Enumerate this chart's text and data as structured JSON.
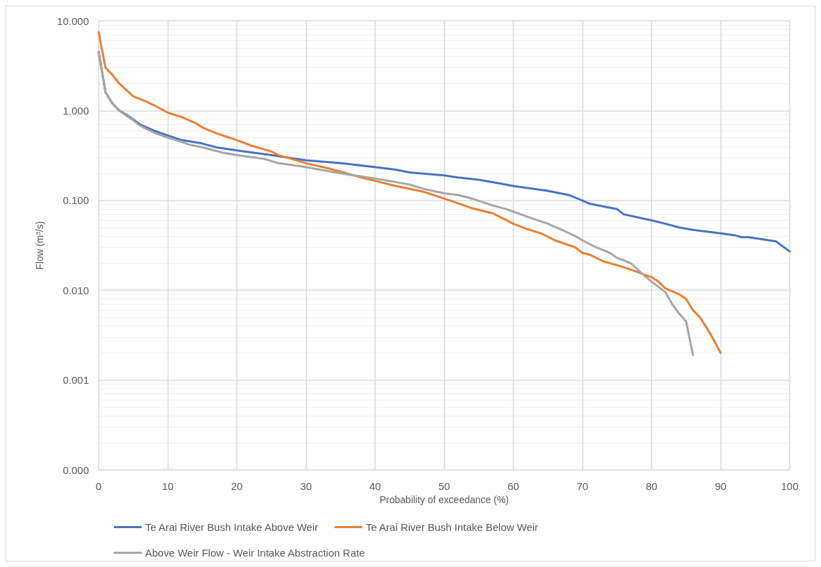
{
  "chart_data": {
    "type": "line",
    "xlabel": "Probability of exceedance (%)",
    "ylabel": "Flow (m³/s)",
    "log": "y",
    "grid": true,
    "legend": "bottom",
    "marker": "none",
    "line_style": "solid",
    "xlim": [
      0,
      100
    ],
    "xticks": [
      0,
      10,
      20,
      30,
      40,
      50,
      60,
      70,
      80,
      90,
      100
    ],
    "ylim": [
      0.0001,
      10
    ],
    "yticks": [
      {
        "value": 0.0001,
        "label": "0.000"
      },
      {
        "value": 0.001,
        "label": "0.001"
      },
      {
        "value": 0.01,
        "label": "0.010"
      },
      {
        "value": 0.1,
        "label": "0.100"
      },
      {
        "value": 1,
        "label": "1.000"
      },
      {
        "value": 10,
        "label": "10.000"
      }
    ],
    "series": [
      {
        "name": "Te Arai River Bush Intake Above Weir",
        "color": "#4472c4",
        "x": [
          0,
          1,
          2,
          3,
          4,
          5,
          6,
          8,
          10,
          12,
          15,
          17,
          20,
          25,
          30,
          35,
          40,
          43,
          45,
          50,
          52,
          55,
          58,
          60,
          65,
          68,
          70,
          71,
          75,
          76,
          80,
          82,
          84,
          86,
          90,
          92,
          93,
          94,
          98,
          100
        ],
        "values": [
          4.5,
          1.6,
          1.2,
          1.0,
          0.9,
          0.8,
          0.7,
          0.6,
          0.53,
          0.47,
          0.43,
          0.39,
          0.36,
          0.32,
          0.28,
          0.26,
          0.235,
          0.22,
          0.205,
          0.19,
          0.18,
          0.17,
          0.155,
          0.145,
          0.128,
          0.115,
          0.1,
          0.092,
          0.08,
          0.07,
          0.06,
          0.055,
          0.05,
          0.047,
          0.043,
          0.041,
          0.039,
          0.039,
          0.035,
          0.027
        ]
      },
      {
        "name": "Te Arai River Bush Intake Below Weir",
        "color": "#ed7d31",
        "x": [
          0,
          1,
          2,
          3,
          4,
          5,
          7,
          8,
          10,
          12,
          14,
          15,
          17,
          20,
          22,
          25,
          26,
          30,
          33,
          35,
          38,
          40,
          43,
          45,
          47,
          50,
          52,
          54,
          57,
          58,
          60,
          62,
          64,
          66,
          69,
          70,
          71,
          73,
          75,
          77,
          80,
          81,
          82,
          84,
          85,
          86,
          87,
          88,
          89,
          90
        ],
        "values": [
          7.5,
          3.0,
          2.5,
          2.0,
          1.7,
          1.45,
          1.25,
          1.15,
          0.95,
          0.85,
          0.73,
          0.65,
          0.56,
          0.47,
          0.41,
          0.35,
          0.32,
          0.26,
          0.23,
          0.21,
          0.18,
          0.165,
          0.145,
          0.135,
          0.125,
          0.105,
          0.093,
          0.082,
          0.072,
          0.066,
          0.055,
          0.048,
          0.043,
          0.036,
          0.03,
          0.026,
          0.025,
          0.021,
          0.019,
          0.017,
          0.014,
          0.0125,
          0.0105,
          0.009,
          0.008,
          0.006,
          0.005,
          0.0038,
          0.0028,
          0.002
        ]
      },
      {
        "name": "Above Weir Flow - Weir Intake Abstraction Rate",
        "color": "#a5a5a5",
        "x": [
          0,
          1,
          2,
          3,
          4,
          5,
          6,
          8,
          10,
          12,
          13,
          15,
          18,
          20,
          24,
          26,
          30,
          35,
          37,
          40,
          43,
          45,
          47,
          50,
          52,
          54,
          57,
          59,
          60,
          62,
          65,
          67,
          69,
          70,
          72,
          74,
          75,
          77,
          79,
          80,
          82,
          83,
          84,
          85,
          86
        ],
        "values": [
          4.5,
          1.6,
          1.2,
          1.0,
          0.88,
          0.78,
          0.68,
          0.57,
          0.5,
          0.45,
          0.42,
          0.39,
          0.34,
          0.32,
          0.29,
          0.26,
          0.235,
          0.2,
          0.19,
          0.175,
          0.16,
          0.15,
          0.135,
          0.12,
          0.115,
          0.105,
          0.088,
          0.08,
          0.075,
          0.066,
          0.055,
          0.047,
          0.04,
          0.036,
          0.03,
          0.026,
          0.023,
          0.02,
          0.0145,
          0.0125,
          0.0095,
          0.007,
          0.0055,
          0.0045,
          0.0019
        ]
      }
    ]
  }
}
